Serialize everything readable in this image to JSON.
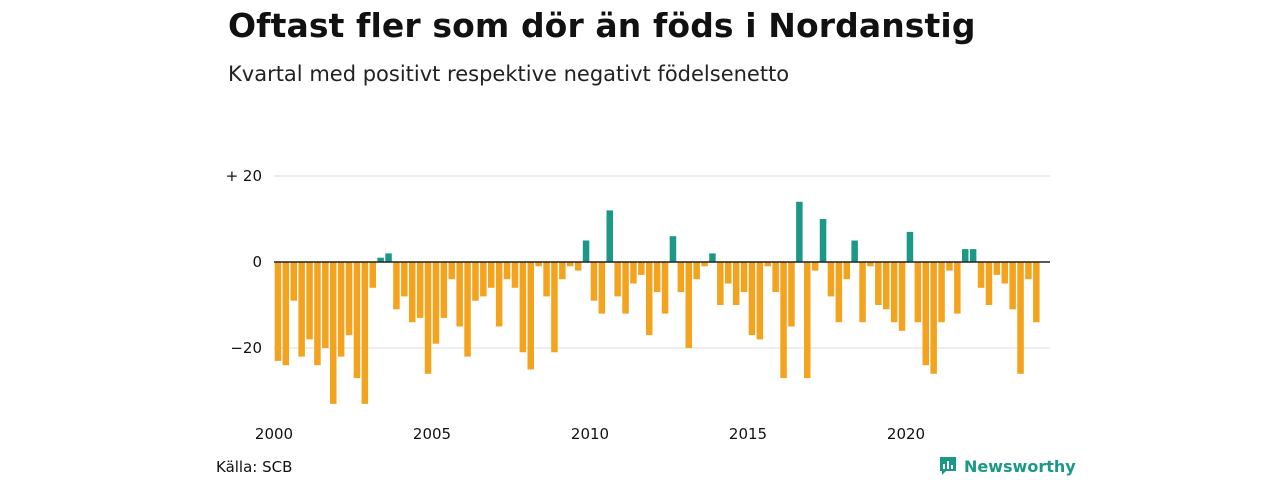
{
  "header": {
    "title": "Oftast fler som dör än föds i Nordanstig",
    "subtitle": "Kvartal med positivt respektive negativt födelsenetto"
  },
  "footer": {
    "source": "Källa: SCB",
    "brand": "Newsworthy"
  },
  "colors": {
    "positive": "#1a9987",
    "negative": "#f4a31f",
    "grid": "#dddddd",
    "zero_line": "#222222",
    "brand": "#1a9987"
  },
  "chart_data": {
    "type": "bar",
    "title": "Oftast fler som dör än föds i Nordanstig",
    "subtitle": "Kvartal med positivt respektive negativt födelsenetto",
    "xlabel": "",
    "ylabel": "",
    "x_start": "2000 Q1",
    "x_tick_labels": [
      "2000",
      "2005",
      "2010",
      "2015",
      "2020"
    ],
    "y_tick_values": [
      20,
      0,
      -20
    ],
    "y_tick_labels": [
      "+ 20",
      "0",
      "−20"
    ],
    "ylim": [
      -36,
      22
    ],
    "grid": true,
    "legend": "none",
    "values": [
      -23,
      -24,
      -9,
      -22,
      -18,
      -24,
      -20,
      -33,
      -22,
      -17,
      -27,
      -33,
      -6,
      1,
      2,
      -11,
      -8,
      -14,
      -13,
      -26,
      -19,
      -13,
      -4,
      -15,
      -22,
      -9,
      -8,
      -6,
      -15,
      -4,
      -6,
      -21,
      -25,
      -1,
      -8,
      -21,
      -4,
      -1,
      -2,
      5,
      -9,
      -12,
      12,
      -8,
      -12,
      -5,
      -3,
      -17,
      -7,
      -12,
      6,
      -7,
      -20,
      -4,
      -1,
      2,
      -10,
      -5,
      -10,
      -7,
      -17,
      -18,
      -1,
      -7,
      -27,
      -15,
      14,
      -27,
      -2,
      10,
      -8,
      -14,
      -4,
      5,
      -14,
      -1,
      -10,
      -11,
      -14,
      -16,
      7,
      -14,
      -24,
      -26,
      -14,
      -2,
      -12,
      3,
      3,
      -6,
      -10,
      -3,
      -5,
      -11,
      -26,
      -4,
      -14
    ]
  }
}
